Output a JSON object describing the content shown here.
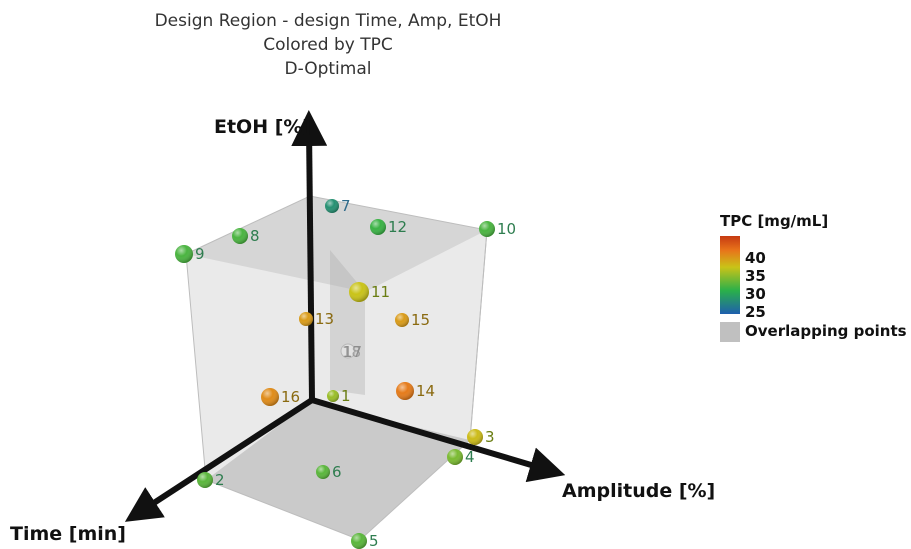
{
  "chart_data": {
    "type": "scatter",
    "title_lines": [
      "Design Region - design Time, Amp, EtOH",
      "Colored by TPC",
      "D-Optimal"
    ],
    "axes": {
      "x": "Time [min]",
      "y": "Amplitude [%]",
      "z": "EtOH [%]"
    },
    "color_scale": {
      "title": "TPC [mg/mL]",
      "ticks": [
        "40",
        "35",
        "30",
        "25"
      ],
      "stops": [
        "#1f5fae",
        "#2ab04a",
        "#c9c318",
        "#e8731a",
        "#c63a12"
      ],
      "overlap_label": "Overlapping points",
      "overlap_color": "#c0c0c0"
    },
    "points": [
      {
        "id": "1",
        "tpc": 33.5,
        "pos": "face-center-back"
      },
      {
        "id": "2",
        "tpc": 31.5,
        "pos": "time-axis"
      },
      {
        "id": "3",
        "tpc": 35.5,
        "pos": "amp-axis"
      },
      {
        "id": "4",
        "tpc": 32.5,
        "pos": "amp-axis"
      },
      {
        "id": "5",
        "tpc": 31.5,
        "pos": "corner"
      },
      {
        "id": "6",
        "tpc": 31.5,
        "pos": "bottom-face"
      },
      {
        "id": "7",
        "tpc": 28.0,
        "pos": "etoh-axis"
      },
      {
        "id": "8",
        "tpc": 31.0,
        "pos": "top-face"
      },
      {
        "id": "9",
        "tpc": 31.0,
        "pos": "top-corner"
      },
      {
        "id": "10",
        "tpc": 31.0,
        "pos": "top-corner"
      },
      {
        "id": "11",
        "tpc": 35.0,
        "pos": "center"
      },
      {
        "id": "12",
        "tpc": 30.5,
        "pos": "top-face"
      },
      {
        "id": "13",
        "tpc": 37.5,
        "pos": "side-face"
      },
      {
        "id": "14",
        "tpc": 39.5,
        "pos": "side-face"
      },
      {
        "id": "15",
        "tpc": 37.5,
        "pos": "side-face"
      },
      {
        "id": "16",
        "tpc": 38.5,
        "pos": "side-face"
      },
      {
        "id": "17",
        "tpc": null,
        "pos": "overlap"
      },
      {
        "id": "18",
        "tpc": null,
        "pos": "overlap"
      }
    ]
  },
  "labels": {
    "overlap_pair": "17​18"
  }
}
